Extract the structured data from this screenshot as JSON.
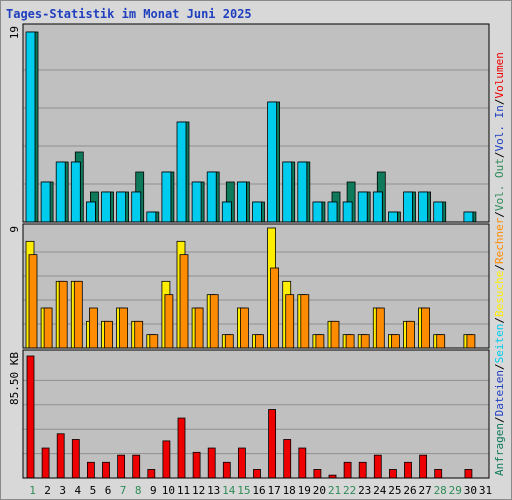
{
  "title": "Tages-Statistik im Monat Juni 2025",
  "colors": {
    "anfragen": "#0f7a5a",
    "dateien": "#1f3fbf",
    "seiten": "#00ccee",
    "besuche": "#ffee00",
    "rechner": "#ff8c00",
    "vol_out": "#2e8b57",
    "vol_in": "#1f3fbf",
    "volumen": "#ee0000",
    "weekend_label": "#2e8b57",
    "weekday_label": "#000000",
    "plot_bg": "#c0c0c0"
  },
  "right_legend": [
    {
      "text": "Anfragen",
      "color": "#0f7a5a"
    },
    {
      "text": "/",
      "color": "#000000"
    },
    {
      "text": "Dateien",
      "color": "#1f3fbf"
    },
    {
      "text": "/",
      "color": "#000000"
    },
    {
      "text": "Seiten",
      "color": "#00ccee"
    },
    {
      "text": "/",
      "color": "#000000"
    },
    {
      "text": "Besuche",
      "color": "#ffee00"
    },
    {
      "text": "/",
      "color": "#000000"
    },
    {
      "text": "Rechner",
      "color": "#ff8c00"
    },
    {
      "text": "/",
      "color": "#000000"
    },
    {
      "text": "Vol. Out",
      "color": "#2e8b57"
    },
    {
      "text": "/",
      "color": "#000000"
    },
    {
      "text": "Vol. In",
      "color": "#1f3fbf"
    },
    {
      "text": "/",
      "color": "#000000"
    },
    {
      "text": "Volumen",
      "color": "#ee0000"
    }
  ],
  "chart_data": [
    {
      "type": "bar",
      "ylabel": "19",
      "ylim": [
        0,
        19
      ],
      "grid": true,
      "categories": [
        "1",
        "2",
        "3",
        "4",
        "5",
        "6",
        "7",
        "8",
        "9",
        "10",
        "11",
        "12",
        "13",
        "14",
        "15",
        "16",
        "17",
        "18",
        "19",
        "20",
        "21",
        "22",
        "23",
        "24",
        "25",
        "26",
        "27",
        "28",
        "29",
        "30",
        "31"
      ],
      "series": [
        {
          "name": "Anfragen",
          "values": [
            19,
            4,
            6,
            7,
            3,
            3,
            3,
            5,
            1,
            5,
            10,
            4,
            5,
            4,
            4,
            2,
            12,
            6,
            6,
            2,
            3,
            4,
            3,
            5,
            1,
            3,
            3,
            2,
            0,
            1,
            0
          ]
        },
        {
          "name": "Dateien",
          "values": [
            19,
            4,
            6,
            6,
            2,
            3,
            3,
            3,
            1,
            5,
            10,
            4,
            5,
            2,
            4,
            2,
            12,
            6,
            6,
            2,
            2,
            2,
            3,
            3,
            1,
            3,
            3,
            2,
            0,
            1,
            0
          ]
        },
        {
          "name": "Seiten",
          "values": [
            19,
            4,
            6,
            6,
            2,
            3,
            3,
            3,
            1,
            5,
            10,
            4,
            5,
            2,
            4,
            2,
            12,
            6,
            6,
            2,
            2,
            2,
            3,
            3,
            1,
            3,
            3,
            2,
            0,
            1,
            0
          ]
        }
      ]
    },
    {
      "type": "bar",
      "ylabel": "9",
      "ylim": [
        0,
        9
      ],
      "grid": true,
      "categories": [
        "1",
        "2",
        "3",
        "4",
        "5",
        "6",
        "7",
        "8",
        "9",
        "10",
        "11",
        "12",
        "13",
        "14",
        "15",
        "16",
        "17",
        "18",
        "19",
        "20",
        "21",
        "22",
        "23",
        "24",
        "25",
        "26",
        "27",
        "28",
        "29",
        "30",
        "31"
      ],
      "series": [
        {
          "name": "Besuche",
          "values": [
            8,
            3,
            5,
            5,
            2,
            2,
            3,
            2,
            1,
            5,
            8,
            3,
            4,
            1,
            3,
            1,
            9,
            5,
            4,
            1,
            2,
            1,
            1,
            3,
            1,
            2,
            3,
            1,
            0,
            1,
            0
          ]
        },
        {
          "name": "Rechner",
          "values": [
            7,
            3,
            5,
            5,
            3,
            2,
            3,
            2,
            1,
            4,
            7,
            3,
            4,
            1,
            3,
            1,
            6,
            4,
            4,
            1,
            2,
            1,
            1,
            3,
            1,
            2,
            3,
            1,
            0,
            1,
            0
          ]
        }
      ]
    },
    {
      "type": "bar",
      "ylabel": "85.50 KB",
      "ylim": [
        0,
        85.5
      ],
      "grid": true,
      "categories": [
        "1",
        "2",
        "3",
        "4",
        "5",
        "6",
        "7",
        "8",
        "9",
        "10",
        "11",
        "12",
        "13",
        "14",
        "15",
        "16",
        "17",
        "18",
        "19",
        "20",
        "21",
        "22",
        "23",
        "24",
        "25",
        "26",
        "27",
        "28",
        "29",
        "30",
        "31"
      ],
      "series": [
        {
          "name": "Volumen",
          "values": [
            85.5,
            21,
            31,
            27,
            11,
            11,
            16,
            16,
            6,
            26,
            42,
            18,
            21,
            11,
            21,
            6,
            48,
            27,
            21,
            6,
            2,
            11,
            11,
            16,
            6,
            11,
            16,
            6,
            0,
            6,
            0
          ]
        }
      ]
    }
  ],
  "weekend_days": [
    "1",
    "7",
    "8",
    "14",
    "15",
    "21",
    "22",
    "28",
    "29"
  ]
}
